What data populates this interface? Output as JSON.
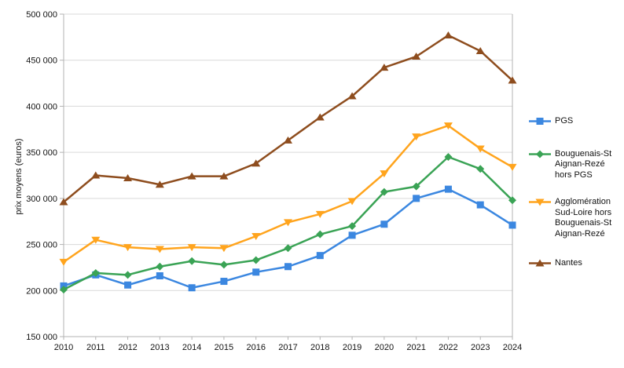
{
  "chart_data": {
    "type": "line",
    "title": "",
    "xlabel": "",
    "ylabel": "prix moyens (euros)",
    "ylim": [
      150000,
      500000
    ],
    "ytick_step": 50000,
    "ytick_labels": [
      "150 000",
      "200 000",
      "250 000",
      "300 000",
      "350 000",
      "400 000",
      "450 000",
      "500 000"
    ],
    "categories": [
      "2010",
      "2011",
      "2012",
      "2013",
      "2014",
      "2015",
      "2016",
      "2017",
      "2018",
      "2019",
      "2020",
      "2021",
      "2022",
      "2023",
      "2024"
    ],
    "grid": "horizontal",
    "legend_position": "right",
    "series": [
      {
        "name": "PGS",
        "legend_lines": [
          "PGS"
        ],
        "color": "#3b87e0",
        "marker": "square",
        "values": [
          205000,
          217000,
          206000,
          216000,
          203000,
          210000,
          220000,
          226000,
          238000,
          260000,
          272000,
          300000,
          310000,
          293000,
          271000
        ]
      },
      {
        "name": "Bouguenais-St Aignan-Rezé hors PGS",
        "legend_lines": [
          "Bouguenais-St",
          "Aignan-Rezé",
          "hors PGS"
        ],
        "color": "#3aa355",
        "marker": "diamond",
        "values": [
          201000,
          219000,
          217000,
          226000,
          232000,
          228000,
          233000,
          246000,
          261000,
          270000,
          307000,
          313000,
          345000,
          332000,
          298000
        ]
      },
      {
        "name": "Agglomération Sud-Loire hors Bouguenais-St Aignan-Rezé",
        "legend_lines": [
          "Agglomération",
          "Sud-Loire hors",
          "Bouguenais-St",
          "Aignan-Rezé"
        ],
        "color": "#ffa41d",
        "marker": "triangle-down",
        "values": [
          231000,
          255000,
          247000,
          245000,
          247000,
          246000,
          259000,
          274000,
          283000,
          297000,
          327000,
          367000,
          379000,
          354000,
          334000
        ]
      },
      {
        "name": "Nantes",
        "legend_lines": [
          "Nantes"
        ],
        "color": "#8e4d1e",
        "marker": "triangle-up",
        "values": [
          296000,
          325000,
          322000,
          315000,
          324000,
          324000,
          338000,
          363000,
          388000,
          411000,
          442000,
          454000,
          477000,
          460000,
          428000
        ]
      }
    ],
    "style": {
      "grid_color": "#d9d9d9",
      "axis_color": "#b3b3b3",
      "text_color": "#111111"
    }
  }
}
